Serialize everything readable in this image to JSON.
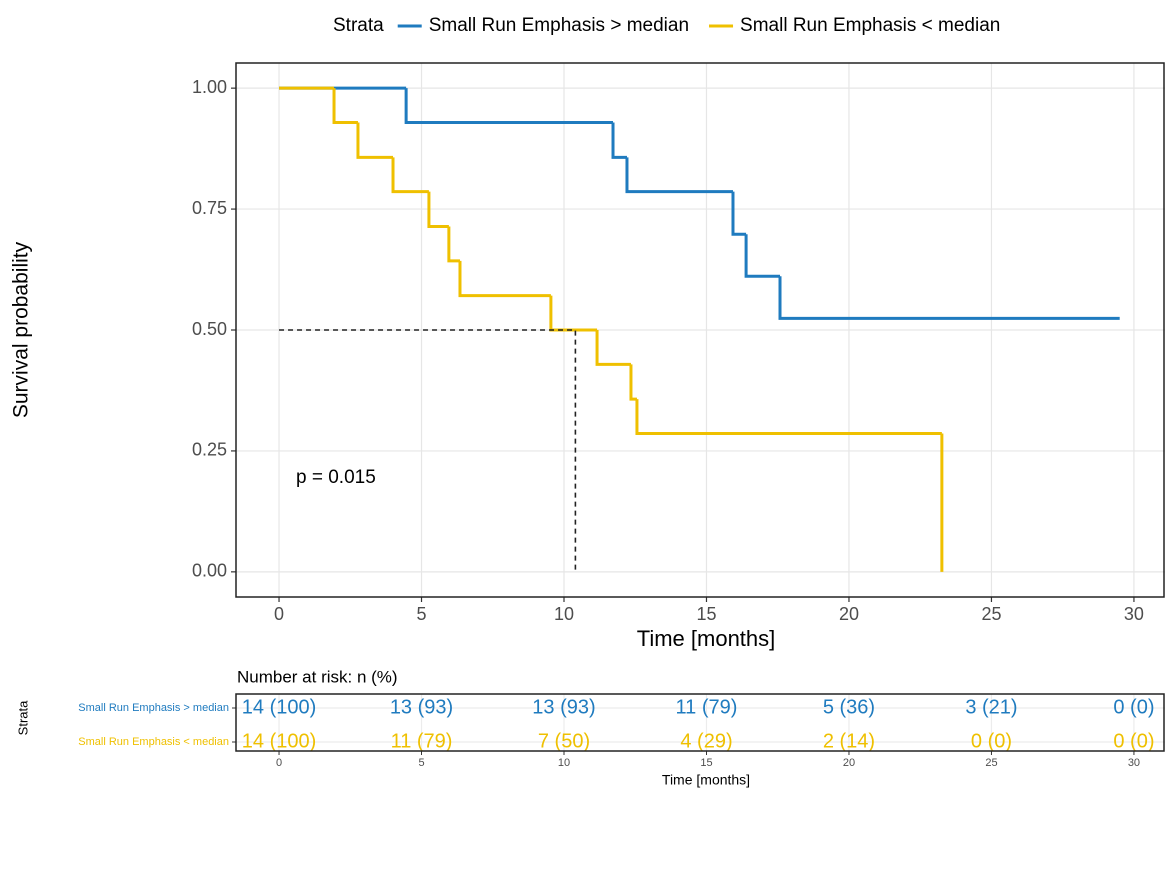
{
  "chart_data": [
    {
      "type": "step",
      "ylabel": "Survival probability",
      "xlabel": "Time [months]",
      "legend_title": "Strata",
      "legend": "top",
      "annotation": "p = 0.015",
      "xlim": [
        -1.51,
        31.09
      ],
      "ylim": [
        -0.052,
        1.052
      ],
      "xticks": [
        0,
        5,
        10,
        15,
        20,
        25,
        30
      ],
      "yticks": [
        {
          "value": 0,
          "label": "0.00"
        },
        {
          "value": 0.25,
          "label": "0.25"
        },
        {
          "value": 0.5,
          "label": "0.50"
        },
        {
          "value": 0.75,
          "label": "0.75"
        },
        {
          "value": 1,
          "label": "1.00"
        }
      ],
      "grid": true,
      "median_line": {
        "x": 10.4,
        "y": 0.5
      },
      "series": [
        {
          "name": "Small Run Emphasis > median",
          "color": "#1f7bbf",
          "x": [
            0,
            4.46,
            11.72,
            12.21,
            15.93,
            16.39,
            17.58,
            29.5
          ],
          "values": [
            1,
            0.929,
            0.857,
            0.786,
            0.698,
            0.611,
            0.524,
            0.524
          ]
        },
        {
          "name": "Small Run Emphasis < median",
          "color": "#efc000",
          "x": [
            0,
            1.93,
            2.77,
            4.0,
            5.26,
            5.96,
            6.35,
            9.54,
            11.16,
            12.35,
            12.56,
            23.26
          ],
          "values": [
            1,
            0.929,
            0.857,
            0.786,
            0.714,
            0.643,
            0.571,
            0.5,
            0.429,
            0.357,
            0.286,
            0
          ]
        }
      ]
    },
    {
      "type": "risk_table",
      "title": "Number at risk: n (%)",
      "ylabel": "Strata",
      "xlabel": "Time [months]",
      "xlim": [
        -1.51,
        31.09
      ],
      "xticks": [
        0,
        5,
        10,
        15,
        20,
        25,
        30
      ],
      "x": [
        0,
        5,
        10,
        15,
        20,
        25,
        30
      ],
      "series": [
        {
          "name": "Small Run Emphasis > median",
          "color": "#1f7bbf",
          "values": [
            14,
            13,
            13,
            11,
            5,
            3,
            0
          ],
          "value_labels": [
            "14 (100)",
            "13 (93)",
            "13 (93)",
            "11 (79)",
            "5 (36)",
            "3 (21)",
            "0 (0)"
          ]
        },
        {
          "name": "Small Run Emphasis < median",
          "color": "#efc000",
          "values": [
            14,
            11,
            7,
            4,
            2,
            0,
            0
          ],
          "value_labels": [
            "14 (100)",
            "11 (79)",
            "7 (50)",
            "4 (29)",
            "2 (14)",
            "0 (0)",
            "0 (0)"
          ]
        }
      ]
    }
  ]
}
